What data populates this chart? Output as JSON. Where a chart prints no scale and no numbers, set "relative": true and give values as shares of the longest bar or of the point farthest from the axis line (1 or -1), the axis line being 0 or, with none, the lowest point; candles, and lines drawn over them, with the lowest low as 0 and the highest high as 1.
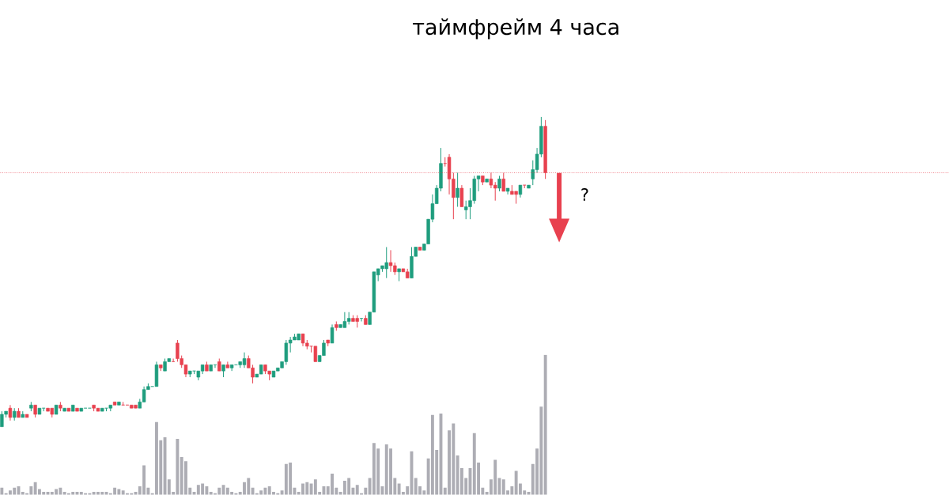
{
  "chart_data": [
    {
      "type": "candlestick",
      "title": "таймфрейм 4 часа",
      "relative": true,
      "categories": [
        null,
        null,
        null,
        null,
        null,
        null,
        null,
        null,
        null,
        null,
        null,
        null,
        null,
        null,
        null,
        null,
        null,
        null,
        null,
        null,
        null,
        null,
        null,
        null,
        null,
        null,
        null,
        null,
        null,
        null,
        null,
        null,
        null,
        null,
        null,
        null,
        null,
        null,
        null,
        null,
        null,
        null,
        null,
        null,
        null,
        null,
        null,
        null,
        null,
        null,
        null,
        null,
        null,
        null,
        null,
        null,
        null,
        null,
        null,
        null,
        null,
        null,
        null,
        null,
        null,
        null,
        null,
        null,
        null,
        null,
        null,
        null,
        null,
        null,
        null,
        null,
        null,
        null,
        null,
        null,
        null,
        null,
        null,
        null,
        null,
        null,
        null,
        null,
        null,
        null,
        null,
        null,
        null,
        null,
        null,
        null,
        null,
        null,
        null,
        null,
        null,
        null,
        null,
        null,
        null,
        null,
        null,
        null,
        null,
        null,
        null,
        null,
        null,
        null,
        null,
        null,
        null,
        null,
        null,
        null,
        null,
        null,
        null,
        null,
        null,
        null,
        null,
        null,
        null,
        null,
        null
      ],
      "ohlc": [
        [
          0.0,
          0.05,
          0.0,
          0.04
        ],
        [
          0.04,
          0.05,
          0.03,
          0.05
        ],
        [
          0.06,
          0.07,
          0.02,
          0.03
        ],
        [
          0.03,
          0.06,
          0.02,
          0.05
        ],
        [
          0.05,
          0.06,
          0.03,
          0.03
        ],
        [
          0.03,
          0.05,
          0.03,
          0.04
        ],
        [
          0.04,
          0.04,
          0.03,
          0.03
        ],
        [
          0.06,
          0.08,
          0.05,
          0.07
        ],
        [
          0.07,
          0.07,
          0.03,
          0.04
        ],
        [
          0.04,
          0.06,
          0.04,
          0.06
        ],
        [
          0.06,
          0.06,
          0.05,
          0.06
        ],
        [
          0.06,
          0.06,
          0.05,
          0.05
        ],
        [
          0.06,
          0.06,
          0.03,
          0.04
        ],
        [
          0.04,
          0.07,
          0.04,
          0.07
        ],
        [
          0.07,
          0.08,
          0.05,
          0.06
        ],
        [
          0.05,
          0.06,
          0.05,
          0.06
        ],
        [
          0.06,
          0.06,
          0.05,
          0.05
        ],
        [
          0.05,
          0.07,
          0.05,
          0.07
        ],
        [
          0.06,
          0.06,
          0.05,
          0.05
        ],
        [
          0.05,
          0.06,
          0.05,
          0.06
        ],
        [
          0.06,
          0.06,
          0.06,
          0.06
        ],
        [
          0.06,
          0.06,
          0.06,
          0.06
        ],
        [
          0.07,
          0.07,
          0.05,
          0.06
        ],
        [
          0.06,
          0.06,
          0.05,
          0.05
        ],
        [
          0.05,
          0.06,
          0.05,
          0.06
        ],
        [
          0.06,
          0.06,
          0.05,
          0.06
        ],
        [
          0.06,
          0.07,
          0.05,
          0.07
        ],
        [
          0.08,
          0.08,
          0.07,
          0.07
        ],
        [
          0.07,
          0.08,
          0.07,
          0.08
        ],
        [
          0.07,
          0.08,
          0.07,
          0.07
        ],
        [
          0.07,
          0.07,
          0.07,
          0.07
        ],
        [
          0.07,
          0.07,
          0.06,
          0.06
        ],
        [
          0.07,
          0.07,
          0.06,
          0.06
        ],
        [
          0.06,
          0.09,
          0.06,
          0.08
        ],
        [
          0.08,
          0.13,
          0.08,
          0.12
        ],
        [
          0.12,
          0.14,
          0.12,
          0.13
        ],
        [
          0.13,
          0.13,
          0.13,
          0.13
        ],
        [
          0.13,
          0.21,
          0.13,
          0.2
        ],
        [
          0.2,
          0.2,
          0.18,
          0.19
        ],
        [
          0.18,
          0.22,
          0.18,
          0.21
        ],
        [
          0.21,
          0.22,
          0.21,
          0.22
        ],
        [
          0.21,
          0.22,
          0.21,
          0.21
        ],
        [
          0.27,
          0.28,
          0.21,
          0.22
        ],
        [
          0.22,
          0.23,
          0.19,
          0.2
        ],
        [
          0.2,
          0.2,
          0.16,
          0.17
        ],
        [
          0.17,
          0.18,
          0.16,
          0.18
        ],
        [
          0.18,
          0.18,
          0.17,
          0.18
        ],
        [
          0.16,
          0.18,
          0.15,
          0.18
        ],
        [
          0.18,
          0.2,
          0.17,
          0.2
        ],
        [
          0.2,
          0.21,
          0.18,
          0.18
        ],
        [
          0.18,
          0.2,
          0.18,
          0.2
        ],
        [
          0.2,
          0.2,
          0.19,
          0.2
        ],
        [
          0.21,
          0.22,
          0.18,
          0.18
        ],
        [
          0.18,
          0.2,
          0.16,
          0.2
        ],
        [
          0.2,
          0.21,
          0.19,
          0.19
        ],
        [
          0.19,
          0.2,
          0.18,
          0.2
        ],
        [
          0.2,
          0.2,
          0.2,
          0.2
        ],
        [
          0.2,
          0.21,
          0.19,
          0.21
        ],
        [
          0.2,
          0.24,
          0.19,
          0.22
        ],
        [
          0.22,
          0.23,
          0.19,
          0.19
        ],
        [
          0.19,
          0.2,
          0.14,
          0.16
        ],
        [
          0.16,
          0.17,
          0.16,
          0.17
        ],
        [
          0.17,
          0.2,
          0.17,
          0.2
        ],
        [
          0.2,
          0.2,
          0.17,
          0.18
        ],
        [
          0.18,
          0.18,
          0.15,
          0.17
        ],
        [
          0.16,
          0.18,
          0.16,
          0.18
        ],
        [
          0.18,
          0.19,
          0.18,
          0.19
        ],
        [
          0.19,
          0.21,
          0.19,
          0.21
        ],
        [
          0.21,
          0.28,
          0.2,
          0.27
        ],
        [
          0.27,
          0.29,
          0.24,
          0.28
        ],
        [
          0.28,
          0.3,
          0.28,
          0.29
        ],
        [
          0.28,
          0.3,
          0.28,
          0.3
        ],
        [
          0.3,
          0.3,
          0.26,
          0.27
        ],
        [
          0.27,
          0.28,
          0.25,
          0.26
        ],
        [
          0.26,
          0.26,
          0.24,
          0.26
        ],
        [
          0.26,
          0.26,
          0.21,
          0.21
        ],
        [
          0.21,
          0.23,
          0.21,
          0.23
        ],
        [
          0.23,
          0.28,
          0.23,
          0.27
        ],
        [
          0.28,
          0.28,
          0.26,
          0.27
        ],
        [
          0.27,
          0.33,
          0.27,
          0.32
        ],
        [
          0.33,
          0.34,
          0.31,
          0.32
        ],
        [
          0.32,
          0.33,
          0.32,
          0.33
        ],
        [
          0.32,
          0.37,
          0.32,
          0.34
        ],
        [
          0.34,
          0.37,
          0.33,
          0.35
        ],
        [
          0.35,
          0.36,
          0.34,
          0.34
        ],
        [
          0.35,
          0.36,
          0.32,
          0.34
        ],
        [
          0.35,
          0.35,
          0.34,
          0.35
        ],
        [
          0.35,
          0.36,
          0.33,
          0.33
        ],
        [
          0.33,
          0.37,
          0.33,
          0.37
        ],
        [
          0.37,
          0.5,
          0.37,
          0.5
        ],
        [
          0.49,
          0.51,
          0.47,
          0.51
        ],
        [
          0.51,
          0.52,
          0.5,
          0.52
        ],
        [
          0.51,
          0.58,
          0.48,
          0.53
        ],
        [
          0.53,
          0.57,
          0.5,
          0.52
        ],
        [
          0.52,
          0.53,
          0.49,
          0.5
        ],
        [
          0.5,
          0.51,
          0.47,
          0.51
        ],
        [
          0.51,
          0.51,
          0.5,
          0.5
        ],
        [
          0.5,
          0.51,
          0.48,
          0.48
        ],
        [
          0.48,
          0.58,
          0.48,
          0.55
        ],
        [
          0.55,
          0.58,
          0.55,
          0.58
        ],
        [
          0.58,
          0.58,
          0.57,
          0.57
        ],
        [
          0.57,
          0.59,
          0.57,
          0.59
        ],
        [
          0.59,
          0.67,
          0.59,
          0.67
        ],
        [
          0.67,
          0.75,
          0.66,
          0.72
        ],
        [
          0.72,
          0.78,
          0.72,
          0.77
        ],
        [
          0.77,
          0.9,
          0.76,
          0.85
        ],
        [
          0.85,
          0.87,
          0.84,
          0.85
        ],
        [
          0.87,
          0.88,
          0.75,
          0.8
        ],
        [
          0.8,
          0.82,
          0.67,
          0.74
        ],
        [
          0.74,
          0.82,
          0.71,
          0.77
        ],
        [
          0.77,
          0.78,
          0.71,
          0.71
        ],
        [
          0.7,
          0.73,
          0.67,
          0.71
        ],
        [
          0.71,
          0.77,
          0.67,
          0.73
        ],
        [
          0.73,
          0.81,
          0.72,
          0.8
        ],
        [
          0.8,
          0.81,
          0.76,
          0.81
        ],
        [
          0.81,
          0.81,
          0.78,
          0.79
        ],
        [
          0.79,
          0.8,
          0.79,
          0.8
        ],
        [
          0.8,
          0.82,
          0.77,
          0.78
        ],
        [
          0.78,
          0.79,
          0.73,
          0.77
        ],
        [
          0.77,
          0.81,
          0.76,
          0.8
        ],
        [
          0.8,
          0.82,
          0.76,
          0.76
        ],
        [
          0.76,
          0.77,
          0.75,
          0.77
        ],
        [
          0.76,
          0.78,
          0.75,
          0.75
        ],
        [
          0.76,
          0.76,
          0.72,
          0.75
        ],
        [
          0.75,
          0.78,
          0.74,
          0.78
        ],
        [
          0.78,
          0.78,
          0.77,
          0.78
        ],
        [
          0.77,
          0.78,
          0.77,
          0.78
        ],
        [
          0.8,
          0.86,
          0.78,
          0.83
        ],
        [
          0.83,
          0.9,
          0.82,
          0.88
        ],
        [
          0.88,
          1.0,
          0.87,
          0.97
        ],
        [
          0.97,
          0.99,
          0.8,
          0.82
        ]
      ],
      "colors": [
        "#1f9d7e",
        "#1f9d7e",
        "#e8414f",
        "#1f9d7e",
        "#e8414f",
        "#1f9d7e",
        "#e8414f",
        "#1f9d7e",
        "#e8414f",
        "#1f9d7e",
        "#1f9d7e",
        "#e8414f",
        "#e8414f",
        "#1f9d7e",
        "#e8414f",
        "#1f9d7e",
        "#e8414f",
        "#1f9d7e",
        "#e8414f",
        "#1f9d7e",
        "#1f9d7e",
        "#1f9d7e",
        "#e8414f",
        "#e8414f",
        "#1f9d7e",
        "#1f9d7e",
        "#1f9d7e",
        "#e8414f",
        "#1f9d7e",
        "#e8414f",
        "#e8414f",
        "#e8414f",
        "#e8414f",
        "#1f9d7e",
        "#1f9d7e",
        "#1f9d7e",
        "#1f9d7e",
        "#1f9d7e",
        "#e8414f",
        "#1f9d7e",
        "#1f9d7e",
        "#e8414f",
        "#e8414f",
        "#e8414f",
        "#e8414f",
        "#1f9d7e",
        "#1f9d7e",
        "#1f9d7e",
        "#1f9d7e",
        "#e8414f",
        "#1f9d7e",
        "#1f9d7e",
        "#e8414f",
        "#1f9d7e",
        "#e8414f",
        "#1f9d7e",
        "#1f9d7e",
        "#1f9d7e",
        "#1f9d7e",
        "#e8414f",
        "#e8414f",
        "#1f9d7e",
        "#1f9d7e",
        "#e8414f",
        "#e8414f",
        "#1f9d7e",
        "#1f9d7e",
        "#1f9d7e",
        "#1f9d7e",
        "#1f9d7e",
        "#1f9d7e",
        "#1f9d7e",
        "#e8414f",
        "#e8414f",
        "#e8414f",
        "#e8414f",
        "#1f9d7e",
        "#1f9d7e",
        "#e8414f",
        "#1f9d7e",
        "#e8414f",
        "#1f9d7e",
        "#1f9d7e",
        "#1f9d7e",
        "#e8414f",
        "#e8414f",
        "#1f9d7e",
        "#e8414f",
        "#1f9d7e",
        "#1f9d7e",
        "#1f9d7e",
        "#1f9d7e",
        "#1f9d7e",
        "#e8414f",
        "#e8414f",
        "#1f9d7e",
        "#e8414f",
        "#e8414f",
        "#1f9d7e",
        "#1f9d7e",
        "#e8414f",
        "#1f9d7e",
        "#1f9d7e",
        "#1f9d7e",
        "#1f9d7e",
        "#1f9d7e",
        "#e8414f",
        "#e8414f",
        "#e8414f",
        "#1f9d7e",
        "#e8414f",
        "#1f9d7e",
        "#1f9d7e",
        "#1f9d7e",
        "#1f9d7e",
        "#e8414f",
        "#1f9d7e",
        "#e8414f",
        "#e8414f",
        "#1f9d7e",
        "#e8414f",
        "#1f9d7e",
        "#e8414f",
        "#e8414f",
        "#1f9d7e",
        "#e8414f",
        "#1f9d7e",
        "#1f9d7e",
        "#1f9d7e",
        "#1f9d7e",
        "#e8414f"
      ],
      "ref_lines": [
        {
          "axis": "y",
          "value": 0.82,
          "color": "#e8414f",
          "line_style": "dotted"
        }
      ],
      "annotations": [
        "?"
      ]
    },
    {
      "type": "bar",
      "relative": true,
      "color": "#adadb4",
      "categories": [
        null,
        null,
        null,
        null,
        null,
        null,
        null,
        null,
        null,
        null,
        null,
        null,
        null,
        null,
        null,
        null,
        null,
        null,
        null,
        null,
        null,
        null,
        null,
        null,
        null,
        null,
        null,
        null,
        null,
        null,
        null,
        null,
        null,
        null,
        null,
        null,
        null,
        null,
        null,
        null,
        null,
        null,
        null,
        null,
        null,
        null,
        null,
        null,
        null,
        null,
        null,
        null,
        null,
        null,
        null,
        null,
        null,
        null,
        null,
        null,
        null,
        null,
        null,
        null,
        null,
        null,
        null,
        null,
        null,
        null,
        null,
        null,
        null,
        null,
        null,
        null,
        null,
        null,
        null,
        null,
        null,
        null,
        null,
        null,
        null,
        null,
        null,
        null,
        null,
        null,
        null,
        null,
        null,
        null,
        null,
        null,
        null,
        null,
        null,
        null,
        null,
        null,
        null,
        null,
        null,
        null,
        null,
        null,
        null,
        null,
        null,
        null,
        null,
        null,
        null,
        null,
        null,
        null,
        null,
        null,
        null,
        null,
        null,
        null,
        null,
        null,
        null,
        null,
        null,
        null,
        null
      ],
      "values": [
        0.05,
        0.01,
        0.03,
        0.05,
        0.06,
        0.02,
        0.01,
        0.06,
        0.09,
        0.04,
        0.02,
        0.02,
        0.02,
        0.04,
        0.05,
        0.02,
        0.01,
        0.02,
        0.02,
        0.02,
        0.01,
        0.01,
        0.02,
        0.02,
        0.02,
        0.02,
        0.01,
        0.05,
        0.04,
        0.03,
        0.01,
        0.01,
        0.02,
        0.06,
        0.21,
        0.05,
        0.01,
        0.52,
        0.39,
        0.41,
        0.11,
        0.02,
        0.4,
        0.27,
        0.24,
        0.05,
        0.02,
        0.07,
        0.08,
        0.06,
        0.02,
        0.01,
        0.05,
        0.07,
        0.05,
        0.02,
        0.01,
        0.02,
        0.09,
        0.12,
        0.05,
        0.01,
        0.03,
        0.05,
        0.06,
        0.02,
        0.01,
        0.03,
        0.22,
        0.23,
        0.05,
        0.02,
        0.08,
        0.09,
        0.08,
        0.11,
        0.02,
        0.06,
        0.06,
        0.15,
        0.05,
        0.02,
        0.1,
        0.12,
        0.05,
        0.07,
        0.01,
        0.05,
        0.12,
        0.37,
        0.33,
        0.06,
        0.36,
        0.33,
        0.12,
        0.08,
        0.02,
        0.06,
        0.31,
        0.12,
        0.06,
        0.03,
        0.26,
        0.57,
        0.32,
        0.58,
        0.05,
        0.46,
        0.51,
        0.28,
        0.19,
        0.12,
        0.19,
        0.44,
        0.23,
        0.05,
        0.02,
        0.11,
        0.25,
        0.12,
        0.11,
        0.03,
        0.06,
        0.17,
        0.08,
        0.03,
        0.02,
        0.22,
        0.33,
        0.63,
        1.0
      ]
    }
  ]
}
